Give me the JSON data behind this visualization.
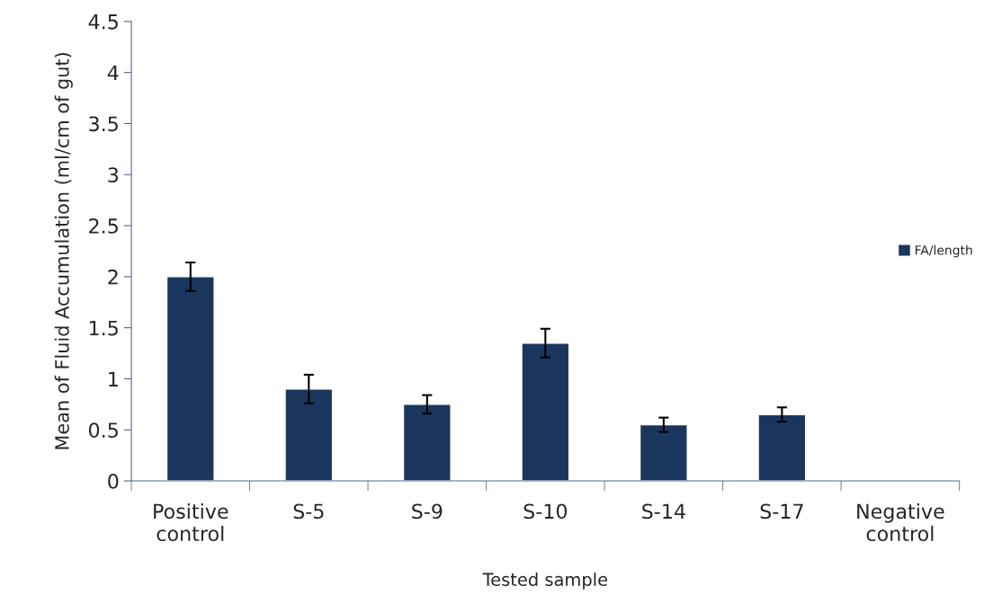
{
  "chart_data": {
    "type": "bar",
    "xlabel": "Tested sample",
    "ylabel": "Mean of Fluid Accumulation (ml/cm of gut)",
    "categories": [
      "Positive\ncontrol",
      "S-5",
      "S-9",
      "S-10",
      "S-14",
      "S-17",
      "Negative\ncontrol"
    ],
    "series": [
      {
        "name": "FA/length",
        "color": "#1b365d",
        "values": [
          2.0,
          0.9,
          0.75,
          1.35,
          0.55,
          0.65,
          null
        ],
        "errors": [
          0.14,
          0.14,
          0.09,
          0.14,
          0.07,
          0.07,
          null
        ]
      }
    ],
    "ylim": [
      0,
      4.5
    ],
    "yticks": [
      0,
      0.5,
      1,
      1.5,
      2,
      2.5,
      3,
      3.5,
      4,
      4.5
    ],
    "grid": false,
    "legend": "right"
  }
}
